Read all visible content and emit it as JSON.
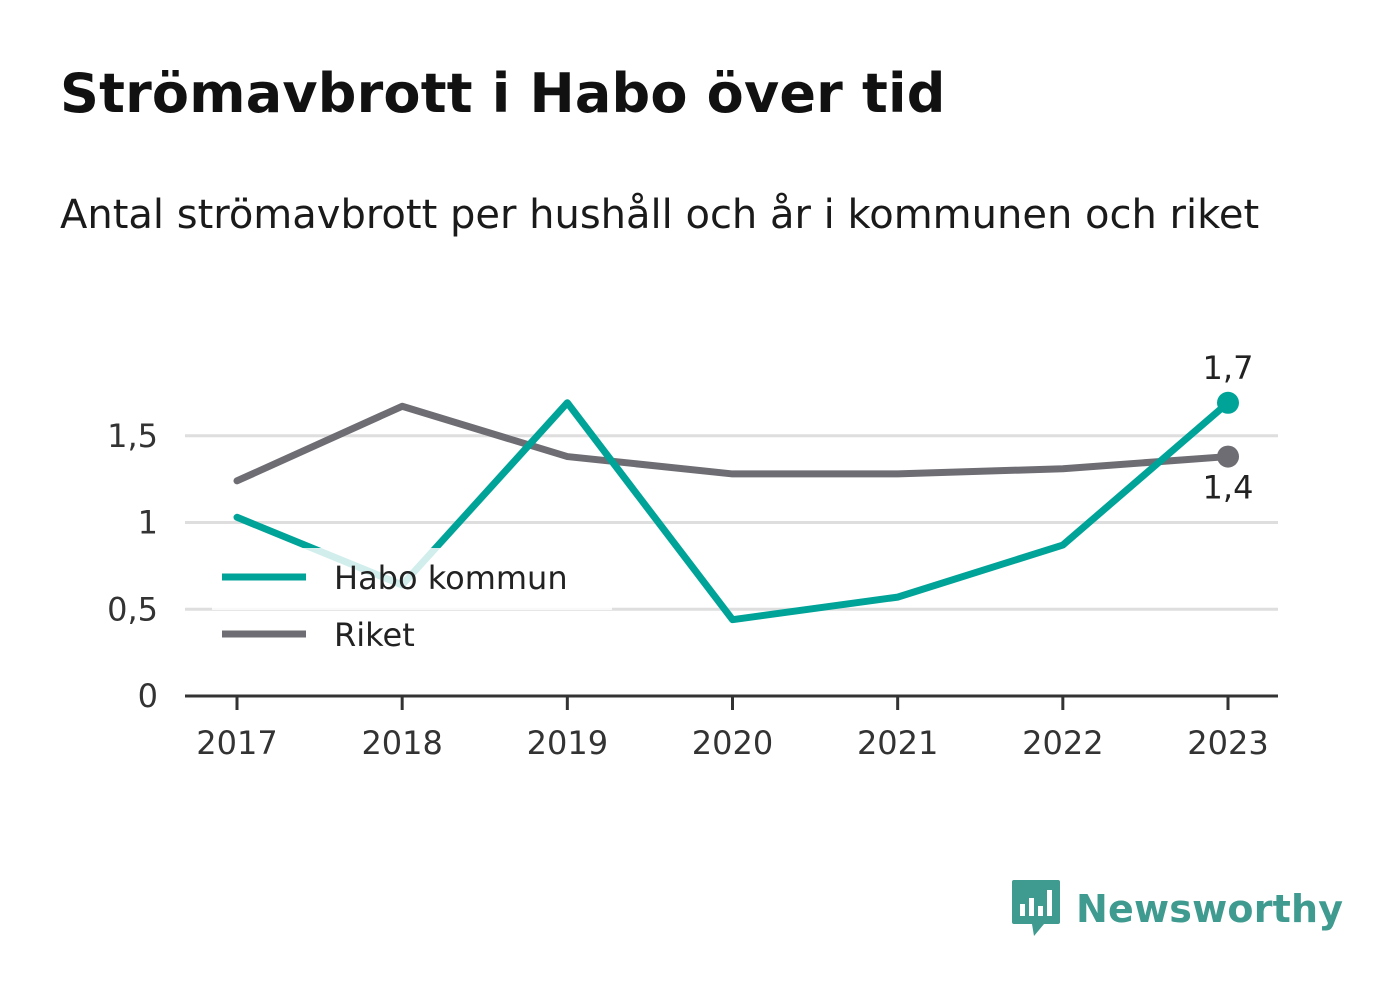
{
  "title": "Strömavbrott i Habo över tid",
  "subtitle": "Antal strömavbrott per hushåll och år i kommunen och riket",
  "brand": {
    "name": "Newsworthy",
    "icon": "newsworthy-logo-icon",
    "color": "#3f9a8f"
  },
  "chart_data": {
    "type": "line",
    "categories": [
      "2017",
      "2018",
      "2019",
      "2020",
      "2021",
      "2022",
      "2023"
    ],
    "ylim": [
      0,
      1.8
    ],
    "yticks": [
      {
        "value": 0,
        "label": "0"
      },
      {
        "value": 0.5,
        "label": "0,5"
      },
      {
        "value": 1,
        "label": "1"
      },
      {
        "value": 1.5,
        "label": "1,5"
      }
    ],
    "grid": true,
    "legend_position": "left-middle",
    "series": [
      {
        "name": "Habo kommun",
        "color": "#00a398",
        "values": [
          1.03,
          0.64,
          1.69,
          0.44,
          0.57,
          0.87,
          1.69
        ],
        "end_label": "1,7",
        "end_label_position": "above"
      },
      {
        "name": "Riket",
        "color": "#6e6d73",
        "values": [
          1.24,
          1.67,
          1.38,
          1.28,
          1.28,
          1.31,
          1.38
        ],
        "end_label": "1,4",
        "end_label_position": "below"
      }
    ]
  }
}
